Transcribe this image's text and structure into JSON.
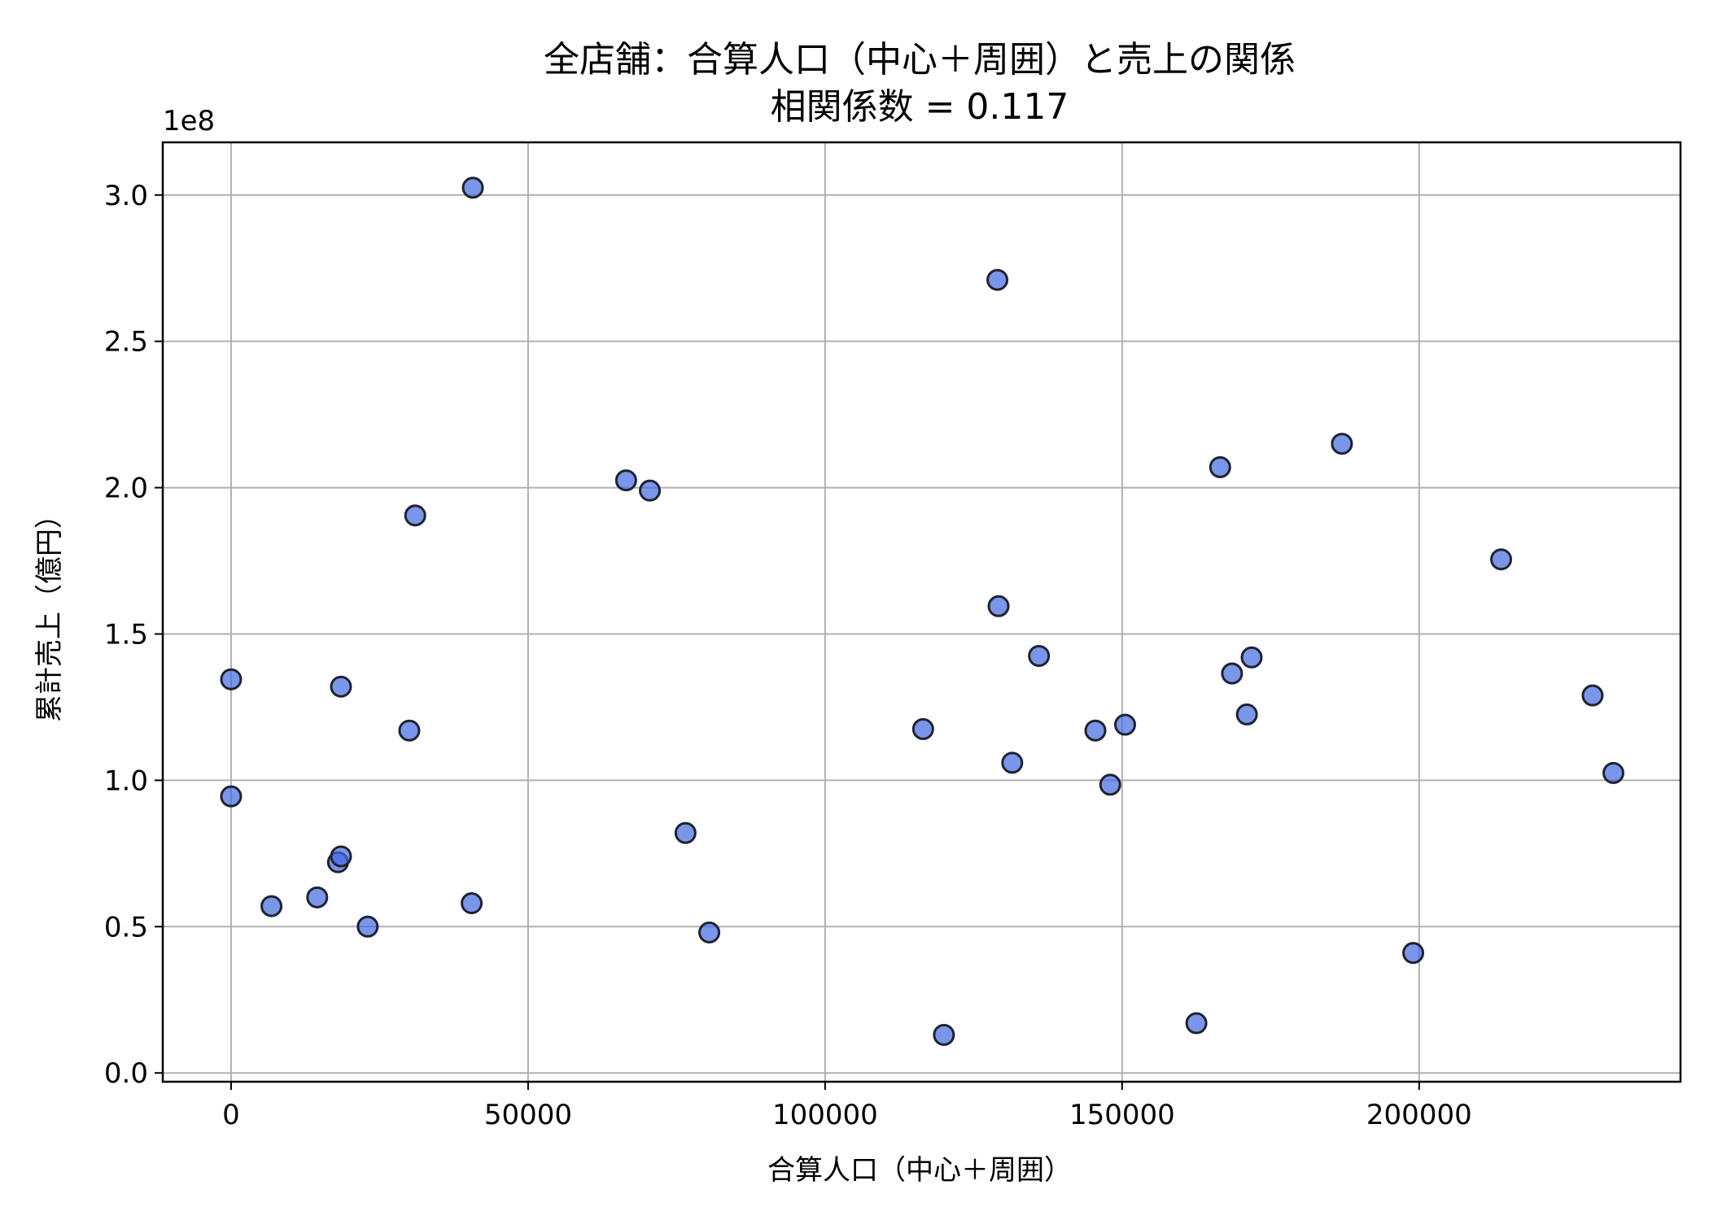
{
  "chart_data": {
    "type": "scatter",
    "title": "全店舗：合算人口（中心＋周囲）と売上の関係",
    "subtitle": "相関係数 = 0.117",
    "xlabel": "合算人口（中心＋周囲）",
    "ylabel": "累計売上（億円）",
    "y_offset_text": "1e8",
    "xlim": [
      -11500,
      244000
    ],
    "ylim": [
      -0.03,
      3.18
    ],
    "x_ticks": [
      0,
      50000,
      100000,
      150000,
      200000
    ],
    "x_tick_labels": [
      "0",
      "50000",
      "100000",
      "150000",
      "200000"
    ],
    "y_ticks": [
      0.0,
      0.5,
      1.0,
      1.5,
      2.0,
      2.5,
      3.0
    ],
    "y_tick_labels": [
      "0.0",
      "0.5",
      "1.0",
      "1.5",
      "2.0",
      "2.5",
      "3.0"
    ],
    "grid": true,
    "point_color": "#4169e1",
    "point_edge_color": "#1f2330",
    "points": [
      {
        "x": 0,
        "y": 1.345
      },
      {
        "x": 0,
        "y": 0.945
      },
      {
        "x": 6800,
        "y": 0.57
      },
      {
        "x": 14500,
        "y": 0.6
      },
      {
        "x": 18000,
        "y": 0.72
      },
      {
        "x": 18500,
        "y": 0.74
      },
      {
        "x": 18500,
        "y": 1.32
      },
      {
        "x": 23000,
        "y": 0.5
      },
      {
        "x": 30000,
        "y": 1.17
      },
      {
        "x": 31000,
        "y": 1.905
      },
      {
        "x": 40500,
        "y": 0.58
      },
      {
        "x": 40700,
        "y": 3.025
      },
      {
        "x": 66500,
        "y": 2.025
      },
      {
        "x": 70500,
        "y": 1.99
      },
      {
        "x": 76500,
        "y": 0.82
      },
      {
        "x": 80500,
        "y": 0.48
      },
      {
        "x": 116500,
        "y": 1.175
      },
      {
        "x": 120000,
        "y": 0.13
      },
      {
        "x": 129000,
        "y": 2.71
      },
      {
        "x": 129200,
        "y": 1.595
      },
      {
        "x": 131500,
        "y": 1.06
      },
      {
        "x": 136000,
        "y": 1.425
      },
      {
        "x": 145500,
        "y": 1.17
      },
      {
        "x": 148000,
        "y": 0.985
      },
      {
        "x": 150500,
        "y": 1.19
      },
      {
        "x": 162500,
        "y": 0.17
      },
      {
        "x": 166500,
        "y": 2.07
      },
      {
        "x": 168500,
        "y": 1.365
      },
      {
        "x": 171000,
        "y": 1.225
      },
      {
        "x": 171800,
        "y": 1.42
      },
      {
        "x": 187000,
        "y": 2.15
      },
      {
        "x": 199000,
        "y": 0.41
      },
      {
        "x": 213800,
        "y": 1.755
      },
      {
        "x": 229200,
        "y": 1.29
      },
      {
        "x": 232700,
        "y": 1.025
      }
    ]
  }
}
